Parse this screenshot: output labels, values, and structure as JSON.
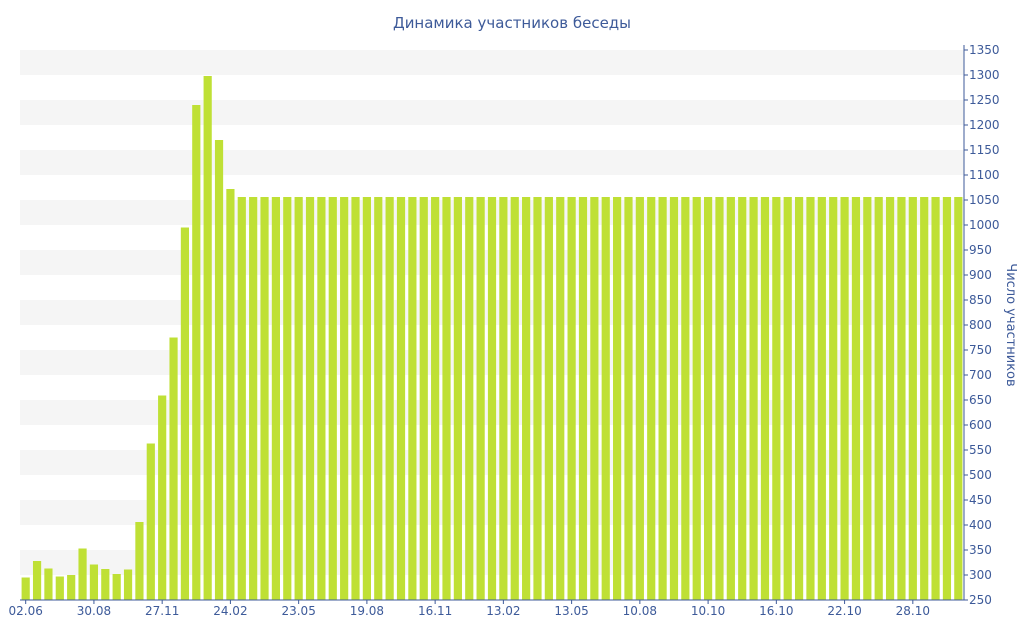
{
  "chart_data": {
    "type": "bar",
    "title": "Динамика участников беседы",
    "ylabel": "Число участников",
    "xlabel": "",
    "ylim": [
      250,
      1350
    ],
    "yticks": [
      250,
      300,
      350,
      400,
      450,
      500,
      550,
      600,
      650,
      700,
      750,
      800,
      850,
      900,
      950,
      1000,
      1050,
      1100,
      1150,
      1200,
      1250,
      1300,
      1350
    ],
    "y_axis_side": "right",
    "grid": "alternating horizontal bands",
    "xtick_labels": [
      {
        "index": 0,
        "label": "02.06"
      },
      {
        "index": 6,
        "label": "30.08"
      },
      {
        "index": 12,
        "label": "27.11"
      },
      {
        "index": 18,
        "label": "24.02"
      },
      {
        "index": 24,
        "label": "23.05"
      },
      {
        "index": 30,
        "label": "19.08"
      },
      {
        "index": 36,
        "label": "16.11"
      },
      {
        "index": 42,
        "label": "13.02"
      },
      {
        "index": 48,
        "label": "13.05"
      },
      {
        "index": 54,
        "label": "10.08"
      },
      {
        "index": 60,
        "label": "10.10"
      },
      {
        "index": 66,
        "label": "16.10"
      },
      {
        "index": 72,
        "label": "22.10"
      },
      {
        "index": 78,
        "label": "28.10"
      }
    ],
    "values": [
      295,
      328,
      313,
      297,
      300,
      353,
      321,
      312,
      302,
      311,
      406,
      563,
      659,
      775,
      995,
      1240,
      1298,
      1170,
      1072,
      1056,
      1056,
      1056,
      1056,
      1056,
      1056,
      1056,
      1056,
      1056,
      1056,
      1056,
      1056,
      1056,
      1056,
      1056,
      1056,
      1056,
      1056,
      1056,
      1056,
      1056,
      1056,
      1056,
      1056,
      1056,
      1056,
      1056,
      1056,
      1056,
      1056,
      1056,
      1056,
      1056,
      1056,
      1056,
      1056,
      1056,
      1056,
      1056,
      1056,
      1056,
      1056,
      1056,
      1056,
      1056,
      1056,
      1056,
      1056,
      1056,
      1056,
      1056,
      1056,
      1056,
      1056,
      1056,
      1056,
      1056,
      1056,
      1056,
      1056,
      1056,
      1056,
      1056,
      1056
    ],
    "colors": {
      "bar": "#bfe035",
      "text": "#3d5a99",
      "axis": "#3d5a99",
      "band": "#f5f5f5"
    }
  }
}
